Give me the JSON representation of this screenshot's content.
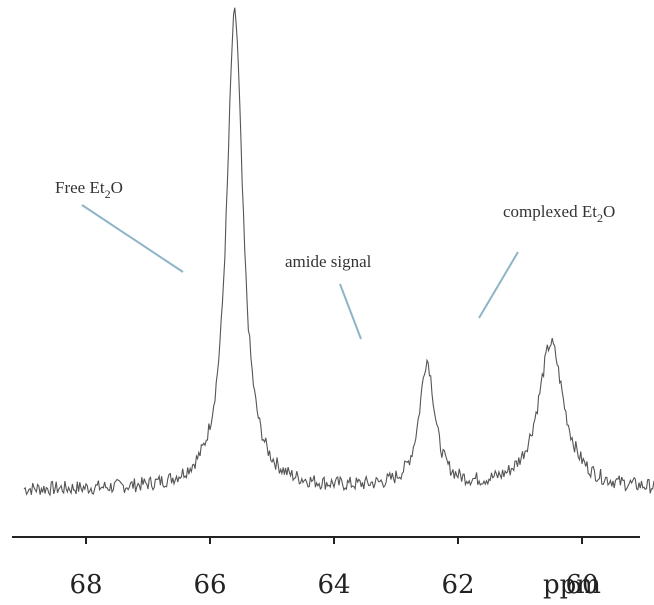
{
  "chart_data": {
    "type": "line",
    "title": "",
    "xlabel": "ppm",
    "ylabel": "",
    "xlim": [
      69.2,
      58.3
    ],
    "x_reversed": true,
    "ylim": [
      0,
      1.0
    ],
    "ticks": [
      "68",
      "66",
      "64",
      "62",
      "60"
    ],
    "tick_values": [
      68,
      66,
      64,
      62,
      60
    ],
    "grid": false,
    "series": [
      {
        "peaks": [
          {
            "x": 65.6,
            "y": 1.0,
            "width": 0.16
          },
          {
            "x": 62.5,
            "y": 0.28,
            "width": 0.15
          },
          {
            "x": 60.5,
            "y": 0.32,
            "width": 0.25
          }
        ],
        "baseline": 0.02,
        "x_range": [
          69.0,
          58.6
        ]
      }
    ],
    "annotations": [
      {
        "id": "free",
        "text_main": "Free Et",
        "sub": "2",
        "text_tail": "O",
        "x": 65.6
      },
      {
        "id": "amide",
        "text_main": "amide signal",
        "sub": "",
        "text_tail": "",
        "x": 62.5
      },
      {
        "id": "complexed",
        "text_main": "complexed Et",
        "sub": "2",
        "text_tail": "O",
        "x": 60.5
      }
    ],
    "colors": {
      "line": "#555555",
      "pointer": "#8fb4c8",
      "axis": "#222222"
    }
  }
}
